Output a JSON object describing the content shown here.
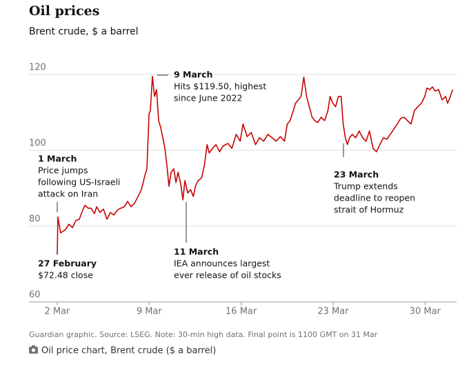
{
  "chart_data": {
    "type": "line",
    "title": "Oil prices",
    "subtitle": "Brent crude, $ a barrel",
    "footnote": "Guardian graphic. Source: LSEG. Note: 30-min high data. Final point is 1100 GMT on 31 Mar",
    "caption": "Oil price chart, Brent crude ($ a barrel)",
    "color": "#c70000",
    "grid": true,
    "x": [
      2,
      2.05,
      2.26,
      2.63,
      2.89,
      3.16,
      3.42,
      3.68,
      3.94,
      4.1,
      4.36,
      4.57,
      4.84,
      5.0,
      5.26,
      5.52,
      5.78,
      6.05,
      6.31,
      6.57,
      6.83,
      7.1,
      7.36,
      7.62,
      7.88,
      8.15,
      8.41,
      8.67,
      8.83,
      8.99,
      9.09,
      9.25,
      9.41,
      9.56,
      9.72,
      9.88,
      10.04,
      10.2,
      10.35,
      10.51,
      10.67,
      10.88,
      11.04,
      11.2,
      11.41,
      11.57,
      11.72,
      11.94,
      12.15,
      12.36,
      12.52,
      12.73,
      12.99,
      13.2,
      13.41,
      13.57,
      13.83,
      14.09,
      14.36,
      14.62,
      14.99,
      15.3,
      15.62,
      15.93,
      16.14,
      16.46,
      16.77,
      17.09,
      17.4,
      17.72,
      18.03,
      18.35,
      18.66,
      18.98,
      19.3,
      19.51,
      19.72,
      19.98,
      20.14,
      20.35,
      20.56,
      20.77,
      20.98,
      21.19,
      21.4,
      21.61,
      21.82,
      22.09,
      22.35,
      22.61,
      22.77,
      22.98,
      23.19,
      23.4,
      23.61,
      23.77,
      23.93,
      24.09,
      24.25,
      24.46,
      24.72,
      24.98,
      25.25,
      25.51,
      25.77,
      26.04,
      26.3,
      26.56,
      26.83,
      27.09,
      27.35,
      27.61,
      27.88,
      28.14,
      28.4,
      28.66,
      28.93,
      29.19,
      29.45,
      29.72,
      29.98,
      30.14,
      30.35,
      30.56,
      30.77,
      31.03,
      31.3,
      31.56,
      31.72,
      31.93,
      32.1
    ],
    "values": [
      72.48,
      82.4,
      78.2,
      79.1,
      80.5,
      79.6,
      81.5,
      81.8,
      84.2,
      85.5,
      84.7,
      84.7,
      83.3,
      85.1,
      83.6,
      84.5,
      81.8,
      83.6,
      82.9,
      84.2,
      84.7,
      85.1,
      86.5,
      85.1,
      86.0,
      87.8,
      89.6,
      93.3,
      95.1,
      109.6,
      110.5,
      119.5,
      114.2,
      116.0,
      107.8,
      106.0,
      103.3,
      100.5,
      96.0,
      90.5,
      94.2,
      95.1,
      91.5,
      94.2,
      90.9,
      86.9,
      92.0,
      88.7,
      89.6,
      87.8,
      90.5,
      92.0,
      92.7,
      96.0,
      101.5,
      99.3,
      100.5,
      101.5,
      99.6,
      101.1,
      101.8,
      100.5,
      104.2,
      102.4,
      106.9,
      103.6,
      104.7,
      101.5,
      103.3,
      102.4,
      104.2,
      103.3,
      102.4,
      103.6,
      102.4,
      106.9,
      107.8,
      110.5,
      112.4,
      113.3,
      114.2,
      119.3,
      114.2,
      111.5,
      108.7,
      107.8,
      107.3,
      108.7,
      107.8,
      110.5,
      114.2,
      112.4,
      111.5,
      114.2,
      114.2,
      106.9,
      103.3,
      101.5,
      103.3,
      104.2,
      103.3,
      105.1,
      103.3,
      102.4,
      105.1,
      100.5,
      99.6,
      101.5,
      103.3,
      102.9,
      104.2,
      105.5,
      106.9,
      108.4,
      108.7,
      107.8,
      106.9,
      110.5,
      111.5,
      112.4,
      114.2,
      116.4,
      116.0,
      116.7,
      115.6,
      116.0,
      113.3,
      114.2,
      112.4,
      114.2,
      116.0
    ],
    "xlim": [
      -0.15,
      32.4
    ],
    "xticks": [
      {
        "value": 2,
        "label": "2 Mar"
      },
      {
        "value": 9,
        "label": "9 Mar"
      },
      {
        "value": 16,
        "label": "16 Mar"
      },
      {
        "value": 23,
        "label": "23 Mar"
      },
      {
        "value": 30,
        "label": "30 Mar"
      }
    ],
    "ylim": [
      60,
      120
    ],
    "yticks": [
      60,
      80,
      100,
      120
    ],
    "annotations": [
      {
        "title": "9 March",
        "text": [
          "Hits $119.50, highest",
          "since June 2022"
        ]
      },
      {
        "title": "1 March",
        "text": [
          "Price jumps",
          "following US-Israeli",
          "attack on Iran"
        ]
      },
      {
        "title": "11 March",
        "text": [
          "IEA announces largest",
          "ever release of oil stocks"
        ]
      },
      {
        "title": "23 March",
        "text": [
          "Trump extends",
          "deadline to reopen",
          "strait of Hormuz"
        ]
      },
      {
        "title": "27 February",
        "text": [
          "$72.48 close"
        ]
      }
    ]
  }
}
